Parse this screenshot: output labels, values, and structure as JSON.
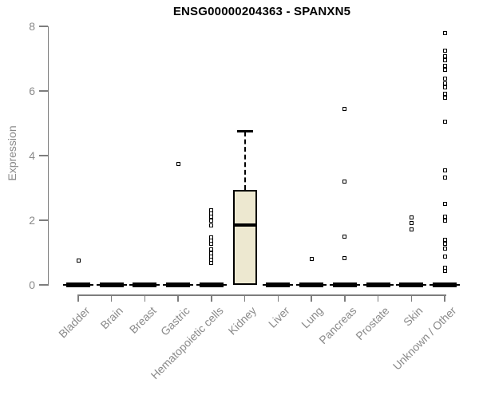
{
  "title": "ENSG00000204363 - SPANXN5",
  "chart_data": {
    "type": "boxplot",
    "title": "ENSG00000204363 - SPANXN5",
    "ylabel": "Expression",
    "xlabel": "",
    "ylim": [
      0,
      8
    ],
    "yticks": [
      0,
      2,
      4,
      6,
      8
    ],
    "grid": false,
    "legend": "none",
    "categories": [
      "Bladder",
      "Brain",
      "Breast",
      "Gastric",
      "Hematopoietic cells",
      "Kidney",
      "Liver",
      "Lung",
      "Pancreas",
      "Prostate",
      "Skin",
      "Unknown / Other"
    ],
    "boxes": [
      {
        "category": "Bladder",
        "q1": 0,
        "median": 0,
        "q3": 0,
        "whisker_low": 0,
        "whisker_high": 0,
        "outliers": [
          0.75
        ]
      },
      {
        "category": "Brain",
        "q1": 0,
        "median": 0,
        "q3": 0,
        "whisker_low": 0,
        "whisker_high": 0,
        "outliers": []
      },
      {
        "category": "Breast",
        "q1": 0,
        "median": 0,
        "q3": 0,
        "whisker_low": 0,
        "whisker_high": 0,
        "outliers": []
      },
      {
        "category": "Gastric",
        "q1": 0,
        "median": 0,
        "q3": 0,
        "whisker_low": 0,
        "whisker_high": 0,
        "outliers": [
          3.75
        ]
      },
      {
        "category": "Hematopoietic cells",
        "q1": 0,
        "median": 0,
        "q3": 0,
        "whisker_low": 0,
        "whisker_high": 0,
        "outliers": [
          2.3,
          2.2,
          2.1,
          2.0,
          1.83,
          1.48,
          1.38,
          1.28,
          1.1,
          0.98,
          0.88,
          0.78,
          0.68
        ]
      },
      {
        "category": "Kidney",
        "q1": 0,
        "median": 1.85,
        "q3": 2.95,
        "whisker_low": 0,
        "whisker_high": 4.75,
        "outliers": []
      },
      {
        "category": "Liver",
        "q1": 0,
        "median": 0,
        "q3": 0,
        "whisker_low": 0,
        "whisker_high": 0,
        "outliers": []
      },
      {
        "category": "Lung",
        "q1": 0,
        "median": 0,
        "q3": 0,
        "whisker_low": 0,
        "whisker_high": 0,
        "outliers": [
          0.8
        ]
      },
      {
        "category": "Pancreas",
        "q1": 0,
        "median": 0,
        "q3": 0,
        "whisker_low": 0,
        "whisker_high": 0,
        "outliers": [
          5.45,
          3.2,
          1.5,
          0.82
        ]
      },
      {
        "category": "Prostate",
        "q1": 0,
        "median": 0,
        "q3": 0,
        "whisker_low": 0,
        "whisker_high": 0,
        "outliers": []
      },
      {
        "category": "Skin",
        "q1": 0,
        "median": 0,
        "q3": 0,
        "whisker_low": 0,
        "whisker_high": 0,
        "outliers": [
          2.08,
          1.92,
          1.72
        ]
      },
      {
        "category": "Unknown / Other",
        "q1": 0,
        "median": 0,
        "q3": 0,
        "whisker_low": 0,
        "whisker_high": 0,
        "outliers": [
          7.78,
          7.25,
          7.08,
          6.95,
          6.78,
          6.66,
          6.38,
          6.24,
          6.1,
          5.92,
          5.8,
          5.05,
          3.55,
          3.32,
          2.5,
          2.12,
          2.0,
          1.4,
          1.28,
          1.12,
          0.88,
          0.52,
          0.42
        ]
      }
    ],
    "colors": {
      "box_fill": "#EDE8D0",
      "box_border": "#000000",
      "median": "#000000",
      "outlier_border": "#000000",
      "axis": "#7d7d7d",
      "tick_label": "#8a8a8a",
      "title": "#000000",
      "background": "#ffffff"
    }
  }
}
